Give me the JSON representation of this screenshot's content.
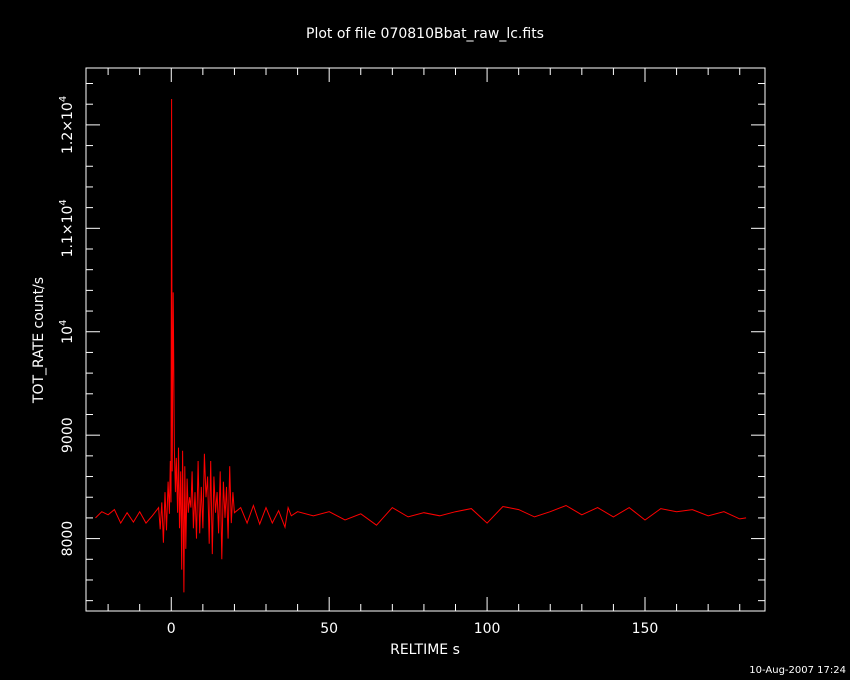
{
  "chart_data": {
    "type": "line",
    "title": "Plot of file 070810Bbat_raw_lc.fits",
    "xlabel": "RELTIME  s",
    "ylabel": "TOT_RATE  count/s",
    "xlim": [
      -27,
      188
    ],
    "ylim": [
      7300,
      12550
    ],
    "x_major_ticks": [
      0,
      50,
      100,
      150
    ],
    "x_minor_step": 10,
    "y_major_ticks": [
      {
        "value": 8000,
        "label": "8000",
        "exp": ""
      },
      {
        "value": 9000,
        "label": "9000",
        "exp": ""
      },
      {
        "value": 10000,
        "label": "10",
        "exp": "4"
      },
      {
        "value": 11000,
        "label": "1.1×10",
        "exp": "4"
      },
      {
        "value": 12000,
        "label": "1.2×10",
        "exp": "4"
      }
    ],
    "y_minor_step": 200,
    "line_color": "#ff0000",
    "axis_color": "#ffffff",
    "background": "#000000",
    "timestamp": "10-Aug-2007 17:24",
    "series": [
      {
        "x": [
          -24,
          -22,
          -20,
          -18,
          -16,
          -14,
          -12,
          -10,
          -8,
          -6,
          -4,
          -3.5,
          -3,
          -2.5,
          -2,
          -1.5,
          -1,
          -0.6,
          -0.3,
          -0.1,
          0.1,
          0.3,
          0.6,
          1,
          1.3,
          1.6,
          2,
          2.3,
          2.6,
          3,
          3.3,
          3.6,
          4,
          4.3,
          4.6,
          5,
          5.4,
          5.8,
          6.2,
          6.6,
          7,
          7.5,
          8,
          8.5,
          9,
          9.5,
          10,
          10.5,
          11,
          11.5,
          12,
          12.5,
          13,
          13.5,
          14,
          14.5,
          15,
          15.5,
          16,
          16.5,
          17,
          17.5,
          18,
          18.5,
          19,
          19.5,
          20,
          22,
          24,
          26,
          28,
          30,
          32,
          34,
          36,
          37,
          38,
          40,
          45,
          50,
          55,
          60,
          65,
          70,
          75,
          80,
          85,
          90,
          95,
          100,
          105,
          110,
          115,
          120,
          125,
          130,
          135,
          140,
          145,
          150,
          155,
          160,
          165,
          170,
          175,
          180,
          182
        ],
        "y": [
          8200,
          8260,
          8230,
          8280,
          8150,
          8250,
          8160,
          8260,
          8150,
          8220,
          8300,
          8090,
          8350,
          7960,
          8450,
          8080,
          8550,
          8240,
          8750,
          8350,
          12250,
          8650,
          10380,
          8850,
          8450,
          8780,
          8250,
          8880,
          8100,
          8650,
          7700,
          8850,
          7480,
          8700,
          7900,
          8580,
          8250,
          8400,
          8300,
          8650,
          8100,
          8450,
          8000,
          8750,
          8050,
          8500,
          8100,
          8820,
          8400,
          8600,
          7950,
          8750,
          7850,
          8600,
          8250,
          8450,
          8050,
          8650,
          7800,
          8550,
          8200,
          8500,
          8000,
          8700,
          8150,
          8450,
          8250,
          8300,
          8150,
          8320,
          8140,
          8300,
          8150,
          8270,
          8110,
          8300,
          8220,
          8260,
          8220,
          8260,
          8180,
          8240,
          8130,
          8300,
          8210,
          8250,
          8220,
          8260,
          8290,
          8150,
          8310,
          8280,
          8210,
          8260,
          8320,
          8230,
          8300,
          8210,
          8300,
          8180,
          8290,
          8260,
          8280,
          8220,
          8260,
          8190,
          8200
        ]
      }
    ]
  }
}
